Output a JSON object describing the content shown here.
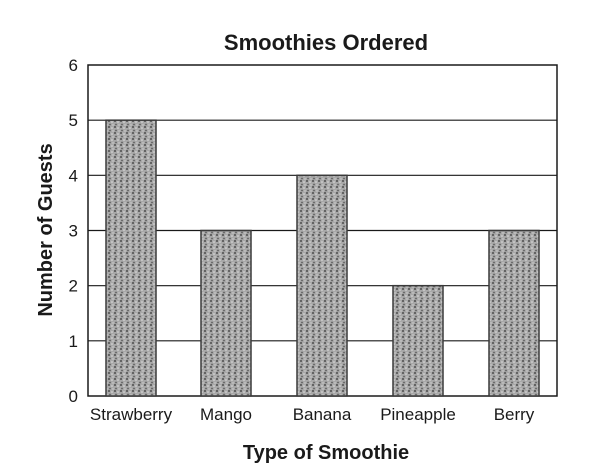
{
  "chart_data": {
    "type": "bar",
    "title": "Smoothies Ordered",
    "xlabel": "Type of Smoothie",
    "ylabel": "Number of Guests",
    "categories": [
      "Strawberry",
      "Mango",
      "Banana",
      "Pineapple",
      "Berry"
    ],
    "values": [
      5,
      3,
      4,
      2,
      3
    ],
    "ylim": [
      0,
      6
    ],
    "yticks": [
      "0",
      "1",
      "2",
      "3",
      "4",
      "5",
      "6"
    ],
    "grid": true,
    "legend": "none",
    "bar_color": "#9a9a9a",
    "bar_pattern": "stippled gray",
    "gridline_color": "#1a1a1a"
  }
}
